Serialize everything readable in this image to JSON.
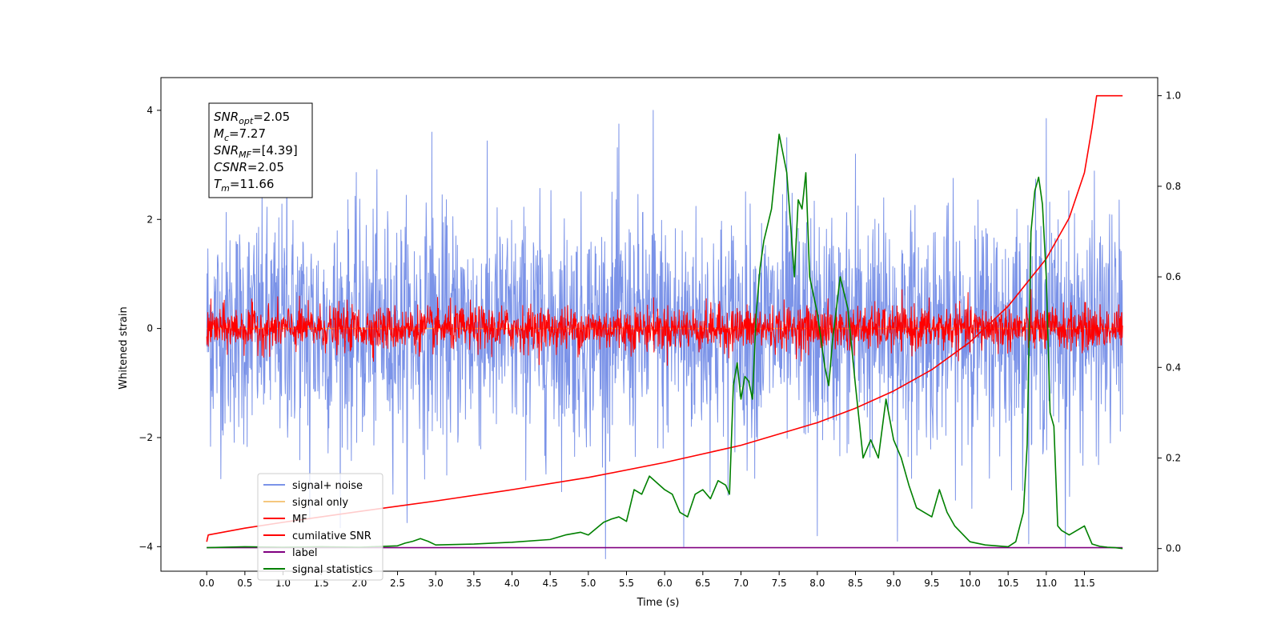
{
  "chart_data": {
    "type": "line",
    "xlabel": "Time (s)",
    "ylabel": "Whitened strain",
    "xlim": [
      -0.6,
      12.46
    ],
    "ylim": [
      -4.45,
      4.6
    ],
    "ylim_right": [
      -0.05,
      1.04
    ],
    "x_ticks": [
      0.0,
      0.5,
      1.0,
      1.5,
      2.0,
      2.5,
      3.0,
      3.5,
      4.0,
      4.5,
      5.0,
      5.5,
      6.0,
      6.5,
      7.0,
      7.5,
      8.0,
      8.5,
      9.0,
      9.5,
      10.0,
      10.5,
      11.0,
      11.5
    ],
    "x_tick_labels": [
      "0.0",
      "0.5",
      "1.0",
      "1.5",
      "2.0",
      "2.5",
      "3.0",
      "3.5",
      "4.0",
      "4.5",
      "5.0",
      "5.5",
      "6.0",
      "6.5",
      "7.0",
      "7.5",
      "8.0",
      "8.5",
      "9.0",
      "9.5",
      "10.0",
      "10.5",
      "11.0",
      "11.5"
    ],
    "y_ticks": [
      -4,
      -2,
      0,
      2,
      4
    ],
    "y_tick_labels": [
      "−4",
      "−2",
      "0",
      "2",
      "4"
    ],
    "y_right_ticks": [
      0.0,
      0.2,
      0.4,
      0.6,
      0.8,
      1.0
    ],
    "y_right_tick_labels": [
      "0.0",
      "0.2",
      "0.4",
      "0.6",
      "0.8",
      "1.0"
    ],
    "grid": false,
    "legend_position": "lower-left",
    "annotation": {
      "lines": [
        {
          "name": "SNR",
          "sub": "opt",
          "value": "=2.05"
        },
        {
          "name": "M",
          "sub": "c",
          "value": "=7.27"
        },
        {
          "name": "SNR",
          "sub": "MF",
          "value": "=[4.39]"
        },
        {
          "name": "CSNR",
          "sub": "",
          "value": "=2.05"
        },
        {
          "name": "T",
          "sub": "m",
          "value": "=11.66"
        }
      ]
    },
    "series": [
      {
        "name": "signal+ noise",
        "color": "#7b93e8",
        "axis": "left",
        "kind": "noise",
        "std": 1.05,
        "range": [
          0.0,
          12.0
        ],
        "peak_samples": [
          [
            1.05,
            3.4
          ],
          [
            2.95,
            3.6
          ],
          [
            5.4,
            3.75
          ],
          [
            5.85,
            4.0
          ],
          [
            7.6,
            3.5
          ],
          [
            8.5,
            3.2
          ],
          [
            11.0,
            3.85
          ],
          [
            8.0,
            -3.8
          ],
          [
            6.25,
            -4.0
          ],
          [
            9.05,
            -3.9
          ],
          [
            11.25,
            -4.0
          ],
          [
            1.35,
            -3.5
          ]
        ]
      },
      {
        "name": "signal only",
        "color": "#f5c77e",
        "axis": "left",
        "kind": "flat",
        "values_x": [
          0.0,
          12.0
        ],
        "values_y": [
          0.0,
          0.0
        ]
      },
      {
        "name": "MF",
        "color": "#ff0000",
        "axis": "left",
        "kind": "noise",
        "std": 0.2,
        "range": [
          0.0,
          12.0
        ]
      },
      {
        "name": "cumilative SNR",
        "color": "#ff0000",
        "axis": "right",
        "x": [
          0.0,
          0.02,
          0.5,
          1.0,
          2.0,
          3.0,
          4.0,
          5.0,
          6.0,
          7.0,
          8.0,
          8.5,
          9.0,
          9.5,
          10.0,
          10.5,
          11.0,
          11.3,
          11.5,
          11.6,
          11.66,
          12.0
        ],
        "y": [
          0.015,
          0.03,
          0.045,
          0.058,
          0.082,
          0.105,
          0.13,
          0.157,
          0.19,
          0.228,
          0.278,
          0.31,
          0.348,
          0.395,
          0.456,
          0.535,
          0.64,
          0.73,
          0.83,
          0.93,
          1.0,
          1.0
        ]
      },
      {
        "name": "label",
        "color": "#800080",
        "axis": "right",
        "x": [
          0.0,
          12.0
        ],
        "y": [
          0.002,
          0.002
        ]
      },
      {
        "name": "signal statistics",
        "color": "#008000",
        "axis": "right",
        "x": [
          0.0,
          0.5,
          1.0,
          1.5,
          2.0,
          2.5,
          2.6,
          2.7,
          2.8,
          2.9,
          3.0,
          3.5,
          4.0,
          4.5,
          4.7,
          4.9,
          5.0,
          5.2,
          5.3,
          5.4,
          5.5,
          5.6,
          5.7,
          5.8,
          5.9,
          6.0,
          6.1,
          6.2,
          6.3,
          6.4,
          6.5,
          6.6,
          6.7,
          6.8,
          6.85,
          6.9,
          6.95,
          7.0,
          7.05,
          7.1,
          7.15,
          7.2,
          7.25,
          7.3,
          7.4,
          7.5,
          7.6,
          7.7,
          7.75,
          7.8,
          7.85,
          7.9,
          8.0,
          8.1,
          8.15,
          8.2,
          8.3,
          8.4,
          8.5,
          8.6,
          8.7,
          8.8,
          8.9,
          9.0,
          9.1,
          9.2,
          9.3,
          9.4,
          9.5,
          9.6,
          9.7,
          9.8,
          10.0,
          10.2,
          10.5,
          10.6,
          10.7,
          10.75,
          10.8,
          10.85,
          10.9,
          10.95,
          11.0,
          11.05,
          11.1,
          11.15,
          11.2,
          11.3,
          11.5,
          11.6,
          11.7,
          11.8,
          11.9,
          12.0
        ],
        "y": [
          0.002,
          0.004,
          0.003,
          0.004,
          0.003,
          0.006,
          0.012,
          0.016,
          0.022,
          0.016,
          0.008,
          0.01,
          0.014,
          0.02,
          0.03,
          0.036,
          0.03,
          0.058,
          0.065,
          0.07,
          0.06,
          0.13,
          0.12,
          0.16,
          0.145,
          0.13,
          0.12,
          0.08,
          0.07,
          0.12,
          0.13,
          0.11,
          0.15,
          0.14,
          0.12,
          0.36,
          0.41,
          0.33,
          0.38,
          0.37,
          0.33,
          0.52,
          0.62,
          0.68,
          0.75,
          0.915,
          0.83,
          0.6,
          0.77,
          0.75,
          0.83,
          0.6,
          0.52,
          0.4,
          0.36,
          0.46,
          0.6,
          0.53,
          0.36,
          0.2,
          0.24,
          0.2,
          0.33,
          0.24,
          0.2,
          0.14,
          0.09,
          0.08,
          0.07,
          0.13,
          0.08,
          0.05,
          0.015,
          0.008,
          0.004,
          0.015,
          0.08,
          0.23,
          0.7,
          0.79,
          0.82,
          0.76,
          0.6,
          0.3,
          0.27,
          0.05,
          0.04,
          0.03,
          0.05,
          0.01,
          0.005,
          0.003,
          0.002,
          0.0
        ]
      }
    ]
  }
}
